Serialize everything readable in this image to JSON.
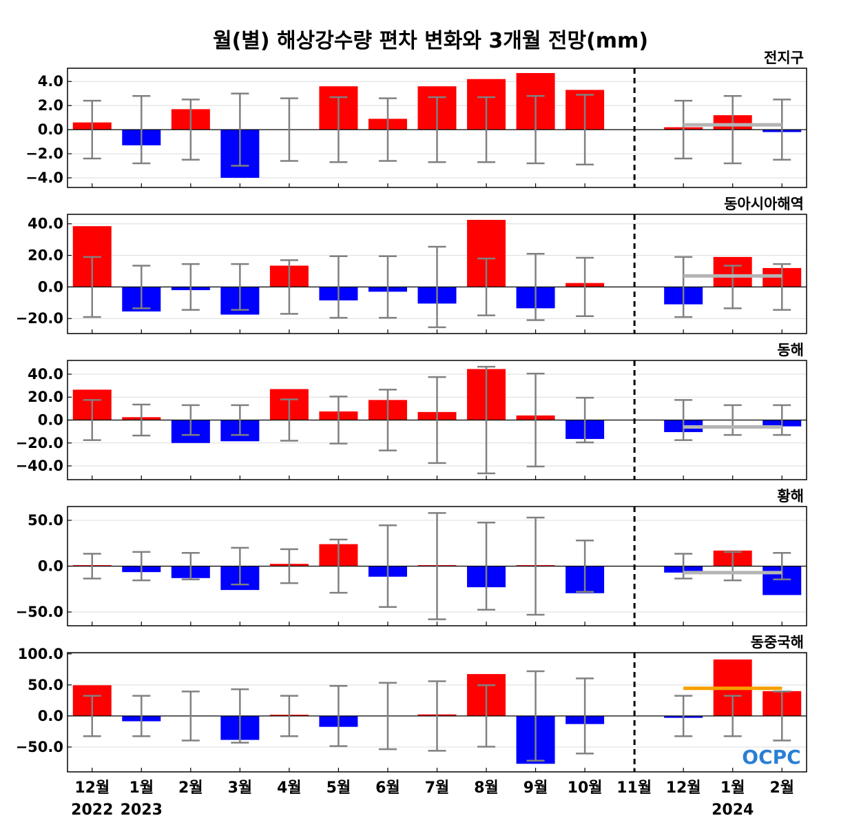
{
  "chart_data": {
    "type": "bar",
    "title": "월(별) 해상강수량 편차 변화와 3개월 전망(mm)",
    "categories": [
      "12월",
      "1월",
      "2월",
      "3월",
      "4월",
      "5월",
      "6월",
      "7월",
      "8월",
      "9월",
      "10월",
      "11월",
      "12월",
      "1월",
      "2월"
    ],
    "year_labels": [
      {
        "index": 0,
        "label": "2022"
      },
      {
        "index": 1,
        "label": "2023"
      },
      {
        "index": 13,
        "label": "2024"
      }
    ],
    "forecast_divider_after_index": 11,
    "colors": {
      "positive": "#ff0000",
      "negative": "#0000ff",
      "errorbar": "#808080",
      "forecast_gray": "#b4b4b4",
      "forecast_orange": "#f5a000",
      "logo": "#2a7fd4"
    },
    "logo_text": "OCPC",
    "panels": [
      {
        "region": "전지구",
        "ylim": [
          -4.8,
          5.1
        ],
        "yticks": [
          4.0,
          2.0,
          0.0,
          -2.0,
          -4.0
        ],
        "tick_labels": [
          "4.0",
          "2.0",
          "0.0",
          "−2.0",
          "−4.0"
        ],
        "values": [
          0.6,
          -1.3,
          1.7,
          -4.0,
          0.0,
          3.6,
          0.9,
          3.6,
          4.2,
          4.7,
          3.3,
          0.0,
          0.2,
          1.2,
          -0.2
        ],
        "error": [
          2.4,
          2.8,
          2.5,
          3.0,
          2.6,
          2.7,
          2.6,
          2.7,
          2.7,
          2.8,
          2.9,
          null,
          2.4,
          2.8,
          2.5
        ],
        "forecast_line": {
          "value": 0.4,
          "color": "gray"
        }
      },
      {
        "region": "동아시아해역",
        "ylim": [
          -29.5,
          46.0
        ],
        "yticks": [
          40.0,
          20.0,
          0.0,
          -20.0
        ],
        "tick_labels": [
          "40.0",
          "20.0",
          "0.0",
          "−20.0"
        ],
        "values": [
          38.5,
          -15.5,
          -2.0,
          -17.5,
          13.5,
          -8.5,
          -3.0,
          -10.5,
          42.5,
          -13.5,
          2.5,
          0.0,
          -11.0,
          19.0,
          12.0
        ],
        "error": [
          19.0,
          13.5,
          14.5,
          14.5,
          17.0,
          19.5,
          19.5,
          25.5,
          18.0,
          21.0,
          18.5,
          null,
          19.0,
          13.5,
          14.5
        ],
        "forecast_line": {
          "value": 7.0,
          "color": "gray"
        }
      },
      {
        "region": "동해",
        "ylim": [
          -52.0,
          52.0
        ],
        "yticks": [
          40.0,
          20.0,
          0.0,
          -20.0,
          -40.0
        ],
        "tick_labels": [
          "40.0",
          "20.0",
          "0.0",
          "−20.0",
          "−40.0"
        ],
        "values": [
          26.5,
          2.5,
          -20.0,
          -18.5,
          27.0,
          7.5,
          17.5,
          7.0,
          44.5,
          4.0,
          -16.5,
          0.0,
          -10.5,
          0.0,
          -5.5
        ],
        "error": [
          17.5,
          13.5,
          13.0,
          13.0,
          18.0,
          20.5,
          26.5,
          37.5,
          46.5,
          40.5,
          19.5,
          null,
          17.5,
          13.0,
          13.0
        ],
        "forecast_line": {
          "value": -6.0,
          "color": "gray"
        }
      },
      {
        "region": "황해",
        "ylim": [
          -65.0,
          65.0
        ],
        "yticks": [
          50.0,
          0.0,
          -50.0
        ],
        "tick_labels": [
          "50.0",
          "0.0",
          "−50.0"
        ],
        "values": [
          0.5,
          -6.5,
          -13.0,
          -26.0,
          2.5,
          24.0,
          -11.5,
          0.5,
          -23.0,
          0.5,
          -29.5,
          0.0,
          -7.0,
          17.0,
          -31.5
        ],
        "error": [
          13.5,
          15.5,
          14.5,
          20.0,
          18.5,
          29.0,
          44.5,
          58.0,
          47.5,
          53.0,
          28.0,
          null,
          13.5,
          15.5,
          14.5
        ],
        "forecast_line": {
          "value": -7.0,
          "color": "gray"
        }
      },
      {
        "region": "동중국해",
        "ylim": [
          -90.0,
          102.0
        ],
        "yticks": [
          100.0,
          50.0,
          0.0,
          -50.0
        ],
        "tick_labels": [
          "100.0",
          "50.0",
          "0.0",
          "−50.0"
        ],
        "values": [
          49.5,
          -8.5,
          0.0,
          -38.5,
          2.0,
          -17.5,
          0.0,
          2.5,
          67.5,
          -77.0,
          -13.0,
          0.0,
          -3.0,
          91.0,
          40.0
        ],
        "error": [
          32.5,
          32.5,
          39.5,
          43.0,
          32.5,
          48.5,
          53.5,
          56.0,
          49.5,
          72.0,
          60.5,
          null,
          32.5,
          32.5,
          39.5
        ],
        "forecast_line": {
          "value": 44.5,
          "color": "orange"
        }
      }
    ]
  }
}
